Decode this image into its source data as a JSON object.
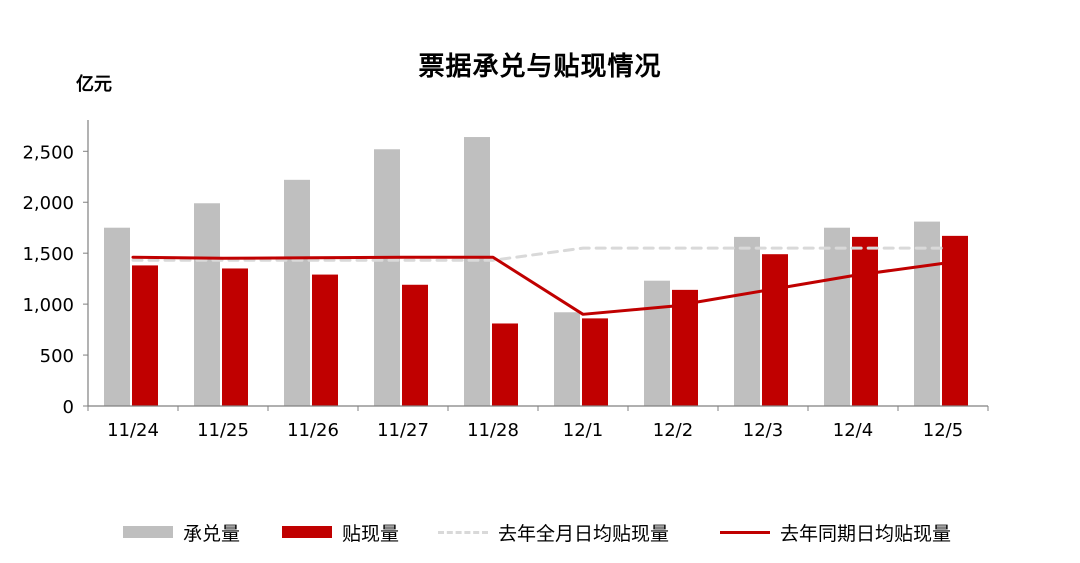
{
  "chart_data": {
    "type": "bar",
    "title": "票据承兑与贴现情况",
    "ylabel": "亿元",
    "ylim": [
      0,
      2800
    ],
    "yticks": [
      0,
      500,
      1000,
      1500,
      2000,
      2500
    ],
    "ytick_labels": [
      "0",
      "500",
      "1,000",
      "1,500",
      "2,000",
      "2,500"
    ],
    "categories": [
      "11/24",
      "11/25",
      "11/26",
      "11/27",
      "11/28",
      "12/1",
      "12/2",
      "12/3",
      "12/4",
      "12/5"
    ],
    "series": [
      {
        "name": "承兑量",
        "kind": "bar",
        "color": "#bfbfbf",
        "values": [
          1750,
          1990,
          2220,
          2520,
          2640,
          920,
          1230,
          1660,
          1750,
          1810
        ]
      },
      {
        "name": "贴现量",
        "kind": "bar",
        "color": "#c00000",
        "values": [
          1380,
          1350,
          1290,
          1190,
          810,
          860,
          1140,
          1490,
          1660,
          1670
        ]
      },
      {
        "name": "去年全月日均贴现量",
        "kind": "line",
        "style": "dashed",
        "color": "#d9d9d9",
        "values": [
          1430,
          1430,
          1430,
          1430,
          1430,
          1550,
          1550,
          1550,
          1550,
          1550
        ]
      },
      {
        "name": "去年同期日均贴现量",
        "kind": "line",
        "style": "solid",
        "color": "#c00000",
        "values": [
          1460,
          1450,
          1455,
          1460,
          1460,
          900,
          980,
          1130,
          1280,
          1400
        ]
      }
    ],
    "grid": false,
    "legend_position": "bottom"
  }
}
